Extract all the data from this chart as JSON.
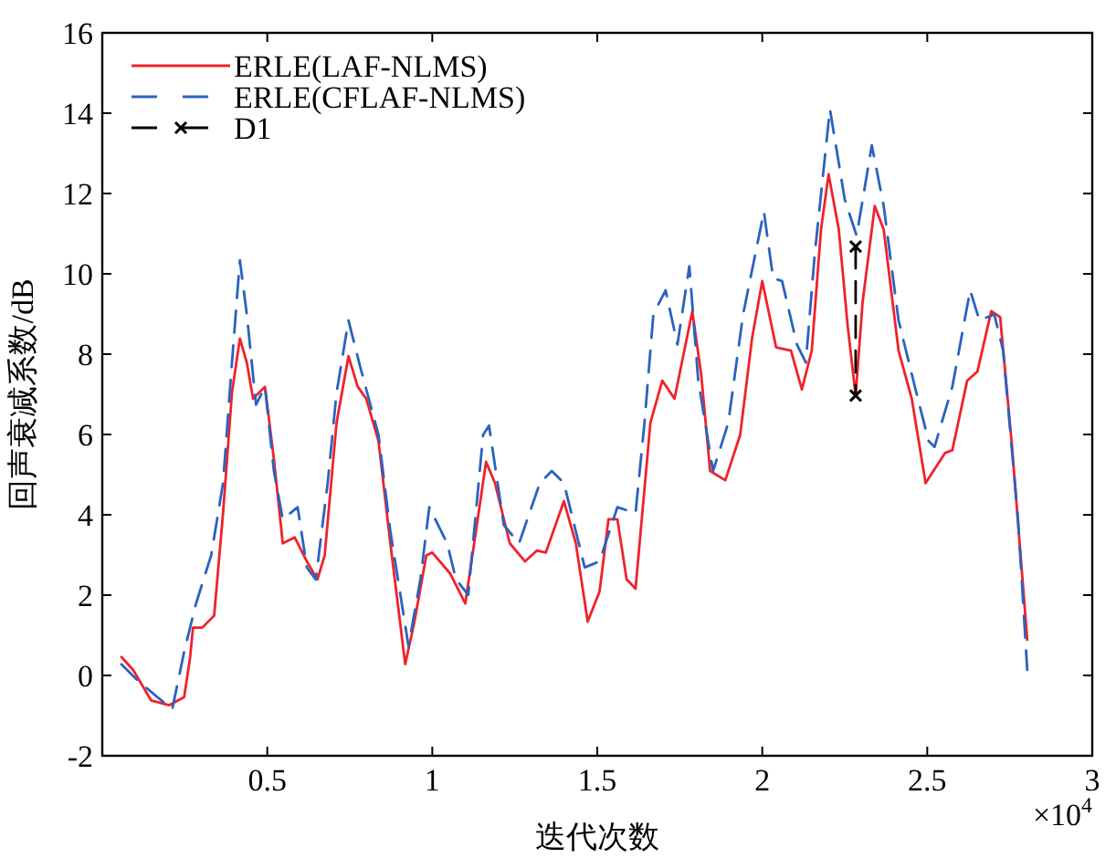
{
  "chart_data": {
    "type": "line",
    "xlabel": "迭代次数",
    "ylabel": "回声衰减系数/dB",
    "xlim": [
      0,
      3
    ],
    "xticks": [
      0.5,
      1,
      1.5,
      2,
      2.5,
      3
    ],
    "ylim": [
      -2,
      16
    ],
    "yticks": [
      -2,
      0,
      2,
      4,
      6,
      8,
      10,
      12,
      14,
      16
    ],
    "grid": false,
    "legend": "top left",
    "annotations": [
      "×10$^{4}$"
    ],
    "series": [
      {
        "name": "ERLE(LAF-NLMS)",
        "color": "#f0222a",
        "line_style": "solid",
        "marker": "none",
        "x": [
          0.058,
          0.094,
          0.148,
          0.203,
          0.248,
          0.266,
          0.275,
          0.303,
          0.339,
          0.366,
          0.393,
          0.417,
          0.438,
          0.457,
          0.493,
          0.52,
          0.547,
          0.583,
          0.62,
          0.652,
          0.674,
          0.71,
          0.746,
          0.774,
          0.8,
          0.837,
          0.873,
          0.918,
          0.946,
          0.982,
          1.0,
          1.054,
          1.1,
          1.127,
          1.163,
          1.19,
          1.235,
          1.281,
          1.317,
          1.344,
          1.399,
          1.435,
          1.471,
          1.507,
          1.534,
          1.561,
          1.589,
          1.616,
          1.661,
          1.697,
          1.734,
          1.788,
          1.815,
          1.842,
          1.888,
          1.933,
          1.969,
          2.0,
          2.042,
          2.087,
          2.12,
          2.15,
          2.178,
          2.201,
          2.232,
          2.259,
          2.283,
          2.304,
          2.341,
          2.368,
          2.413,
          2.453,
          2.495,
          2.554,
          2.576,
          2.621,
          2.652,
          2.694,
          2.721,
          2.757,
          2.803
        ],
        "values": [
          0.46,
          0.13,
          -0.62,
          -0.74,
          -0.54,
          0.44,
          1.19,
          1.19,
          1.49,
          4.04,
          7.04,
          8.39,
          7.79,
          6.89,
          7.19,
          5.39,
          3.29,
          3.44,
          2.84,
          2.39,
          2.99,
          6.29,
          7.95,
          7.19,
          6.89,
          5.84,
          3.29,
          0.28,
          1.34,
          2.99,
          3.06,
          2.54,
          1.79,
          3.29,
          5.32,
          4.79,
          3.29,
          2.84,
          3.11,
          3.06,
          4.34,
          3.29,
          1.34,
          2.09,
          3.89,
          3.89,
          2.39,
          2.16,
          6.29,
          7.34,
          6.89,
          9.07,
          7.49,
          5.09,
          4.86,
          5.99,
          8.39,
          9.82,
          8.17,
          8.09,
          7.12,
          8.09,
          11.1,
          12.48,
          11.1,
          8.69,
          6.97,
          9.29,
          11.69,
          11.1,
          8.09,
          6.89,
          4.79,
          5.54,
          5.61,
          7.34,
          7.57,
          9.07,
          8.92,
          5.69,
          0.89
        ]
      },
      {
        "name": "ERLE(CFLAF-NLMS)",
        "color": "#2a62c0",
        "line_style": "dashed",
        "marker": "none",
        "x": [
          0.058,
          0.103,
          0.167,
          0.212,
          0.248,
          0.284,
          0.33,
          0.366,
          0.393,
          0.417,
          0.438,
          0.466,
          0.493,
          0.52,
          0.547,
          0.592,
          0.62,
          0.647,
          0.683,
          0.71,
          0.746,
          0.783,
          0.837,
          0.873,
          0.928,
          0.964,
          0.991,
          1.018,
          1.045,
          1.072,
          1.109,
          1.154,
          1.172,
          1.217,
          1.263,
          1.326,
          1.362,
          1.399,
          1.462,
          1.507,
          1.561,
          1.616,
          1.643,
          1.67,
          1.707,
          1.743,
          1.779,
          1.806,
          1.851,
          1.897,
          1.942,
          2.005,
          2.033,
          2.06,
          2.105,
          2.132,
          2.159,
          2.205,
          2.25,
          2.286,
          2.332,
          2.368,
          2.413,
          2.467,
          2.504,
          2.522,
          2.576,
          2.63,
          2.658,
          2.703,
          2.73,
          2.775,
          2.803
        ],
        "values": [
          0.28,
          -0.09,
          -0.54,
          -0.84,
          0.59,
          1.79,
          2.99,
          4.79,
          7.79,
          10.34,
          8.99,
          6.74,
          7.19,
          5.09,
          3.89,
          4.19,
          2.69,
          2.39,
          4.79,
          7.04,
          8.84,
          7.64,
          5.99,
          3.59,
          0.73,
          2.39,
          4.19,
          3.74,
          3.29,
          2.39,
          2.01,
          5.99,
          6.22,
          3.74,
          3.29,
          4.79,
          5.09,
          4.79,
          2.69,
          2.84,
          4.19,
          4.04,
          6.29,
          8.99,
          9.59,
          8.24,
          10.19,
          7.34,
          5.09,
          6.29,
          8.99,
          11.55,
          9.89,
          9.82,
          8.24,
          7.79,
          10.49,
          14.1,
          11.85,
          10.95,
          13.2,
          11.69,
          8.84,
          7.04,
          5.84,
          5.69,
          7.19,
          9.59,
          8.84,
          8.99,
          8.09,
          3.89,
          0.14
        ]
      },
      {
        "name": "D1",
        "color": "#000000",
        "line_style": "dashed",
        "marker": "cross",
        "x": [
          2.283,
          2.283
        ],
        "values": [
          10.68,
          6.97
        ]
      }
    ]
  }
}
